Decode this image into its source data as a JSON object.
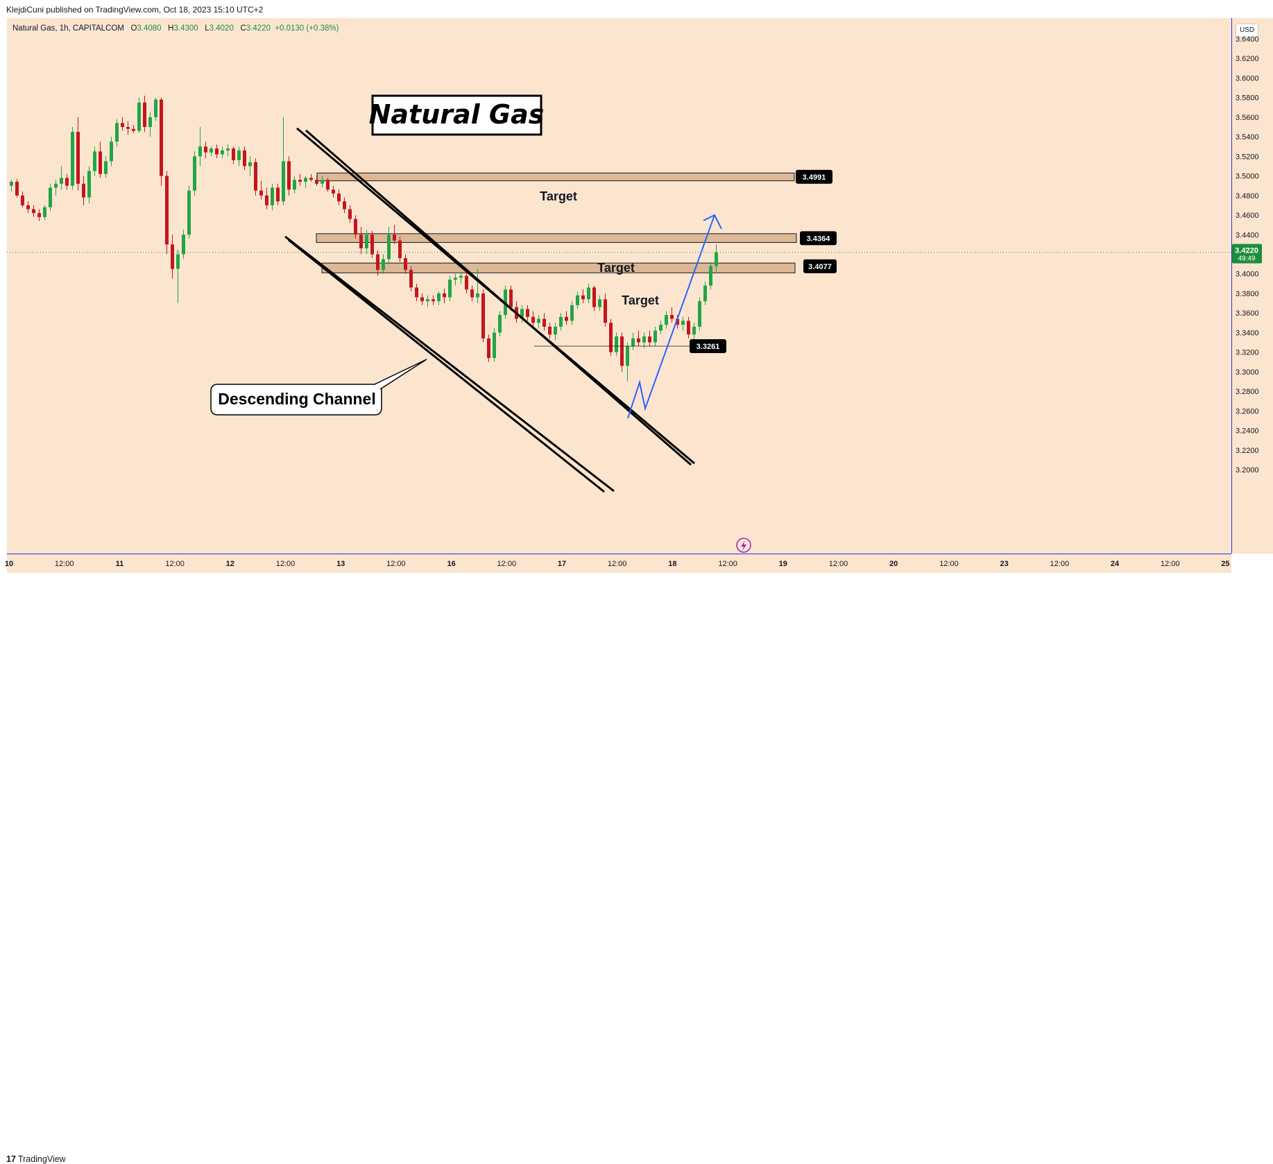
{
  "header": {
    "published": "KlejdiCuni published on TradingView.com, Oct 18, 2023 15:10 UTC+2"
  },
  "symbol": {
    "name": "Natural Gas, 1h, CAPITALCOM",
    "open_label": "O",
    "open": "3.4080",
    "high_label": "H",
    "high": "3.4300",
    "low_label": "L",
    "low": "3.4020",
    "close_label": "C",
    "close": "3.4220",
    "change": "+0.0130 (+0.38%)"
  },
  "currency": "USD",
  "footer": {
    "logo_mark": "17",
    "logo_text": "TradingView"
  },
  "colors": {
    "background": "#fce5cf",
    "up": "#22a447",
    "down": "#c4161c",
    "zone_fill": "#dcb896",
    "projection": "#2962ff",
    "axis_line": "#2a2ee8"
  },
  "chart_data": {
    "type": "candlestick",
    "title": "Natural Gas",
    "ylim": [
      3.19,
      3.65
    ],
    "y_ticks": [
      "3.6400",
      "3.6200",
      "3.6000",
      "3.5800",
      "3.5600",
      "3.5400",
      "3.5200",
      "3.5000",
      "3.4800",
      "3.4600",
      "3.4400",
      "3.4200",
      "3.4000",
      "3.3800",
      "3.3600",
      "3.3400",
      "3.3200",
      "3.3000",
      "3.2800",
      "3.2600",
      "3.2400",
      "3.2200",
      "3.2000"
    ],
    "x_ticks": [
      "10",
      "12:00",
      "11",
      "12:00",
      "12",
      "12:00",
      "13",
      "12:00",
      "16",
      "12:00",
      "17",
      "12:00",
      "18",
      "12:00",
      "19",
      "12:00",
      "20",
      "12:00",
      "23",
      "12:00",
      "24",
      "12:00",
      "25"
    ],
    "price_labels": [
      {
        "value": "3.4991",
        "price": 3.4991
      },
      {
        "value": "3.4364",
        "price": 3.4364
      },
      {
        "value": "3.4077",
        "price": 3.4077
      },
      {
        "value": "3.3261",
        "price": 3.3261
      }
    ],
    "current_price": {
      "value": "3.4220",
      "countdown": "49:49"
    },
    "target_zones": [
      {
        "label": "Target",
        "top": 3.503,
        "bottom": 3.495
      },
      {
        "label": "Target",
        "top": 3.441,
        "bottom": 3.432
      },
      {
        "label": "Target",
        "top": 3.411,
        "bottom": 3.401
      }
    ],
    "annotations": {
      "title_box": "Natural Gas",
      "channel_label": "Descending Channel"
    },
    "candles": [
      {
        "o": 3.49,
        "h": 3.496,
        "l": 3.484,
        "c": 3.494
      },
      {
        "o": 3.494,
        "h": 3.497,
        "l": 3.478,
        "c": 3.48
      },
      {
        "o": 3.48,
        "h": 3.484,
        "l": 3.468,
        "c": 3.47
      },
      {
        "o": 3.47,
        "h": 3.474,
        "l": 3.462,
        "c": 3.466
      },
      {
        "o": 3.466,
        "h": 3.47,
        "l": 3.458,
        "c": 3.462
      },
      {
        "o": 3.462,
        "h": 3.466,
        "l": 3.454,
        "c": 3.458
      },
      {
        "o": 3.458,
        "h": 3.47,
        "l": 3.455,
        "c": 3.468
      },
      {
        "o": 3.468,
        "h": 3.492,
        "l": 3.464,
        "c": 3.488
      },
      {
        "o": 3.488,
        "h": 3.496,
        "l": 3.48,
        "c": 3.492
      },
      {
        "o": 3.492,
        "h": 3.51,
        "l": 3.486,
        "c": 3.498
      },
      {
        "o": 3.498,
        "h": 3.502,
        "l": 3.486,
        "c": 3.49
      },
      {
        "o": 3.49,
        "h": 3.55,
        "l": 3.486,
        "c": 3.545
      },
      {
        "o": 3.545,
        "h": 3.56,
        "l": 3.485,
        "c": 3.492
      },
      {
        "o": 3.492,
        "h": 3.5,
        "l": 3.47,
        "c": 3.478
      },
      {
        "o": 3.478,
        "h": 3.51,
        "l": 3.472,
        "c": 3.505
      },
      {
        "o": 3.505,
        "h": 3.53,
        "l": 3.5,
        "c": 3.525
      },
      {
        "o": 3.525,
        "h": 3.535,
        "l": 3.498,
        "c": 3.502
      },
      {
        "o": 3.502,
        "h": 3.52,
        "l": 3.498,
        "c": 3.515
      },
      {
        "o": 3.515,
        "h": 3.54,
        "l": 3.51,
        "c": 3.535
      },
      {
        "o": 3.535,
        "h": 3.558,
        "l": 3.53,
        "c": 3.554
      },
      {
        "o": 3.554,
        "h": 3.56,
        "l": 3.546,
        "c": 3.55
      },
      {
        "o": 3.55,
        "h": 3.556,
        "l": 3.542,
        "c": 3.548
      },
      {
        "o": 3.548,
        "h": 3.552,
        "l": 3.544,
        "c": 3.546
      },
      {
        "o": 3.546,
        "h": 3.58,
        "l": 3.544,
        "c": 3.575
      },
      {
        "o": 3.575,
        "h": 3.582,
        "l": 3.545,
        "c": 3.55
      },
      {
        "o": 3.55,
        "h": 3.565,
        "l": 3.54,
        "c": 3.56
      },
      {
        "o": 3.56,
        "h": 3.58,
        "l": 3.556,
        "c": 3.578
      },
      {
        "o": 3.578,
        "h": 3.58,
        "l": 3.49,
        "c": 3.5
      },
      {
        "o": 3.5,
        "h": 3.505,
        "l": 3.42,
        "c": 3.43
      },
      {
        "o": 3.43,
        "h": 3.44,
        "l": 3.395,
        "c": 3.405
      },
      {
        "o": 3.405,
        "h": 3.425,
        "l": 3.37,
        "c": 3.42
      },
      {
        "o": 3.42,
        "h": 3.445,
        "l": 3.415,
        "c": 3.44
      },
      {
        "o": 3.44,
        "h": 3.49,
        "l": 3.436,
        "c": 3.485
      },
      {
        "o": 3.485,
        "h": 3.525,
        "l": 3.48,
        "c": 3.52
      },
      {
        "o": 3.52,
        "h": 3.55,
        "l": 3.51,
        "c": 3.53
      },
      {
        "o": 3.53,
        "h": 3.535,
        "l": 3.518,
        "c": 3.524
      },
      {
        "o": 3.524,
        "h": 3.53,
        "l": 3.52,
        "c": 3.528
      },
      {
        "o": 3.528,
        "h": 3.532,
        "l": 3.518,
        "c": 3.522
      },
      {
        "o": 3.522,
        "h": 3.53,
        "l": 3.518,
        "c": 3.526
      },
      {
        "o": 3.526,
        "h": 3.532,
        "l": 3.52,
        "c": 3.528
      },
      {
        "o": 3.528,
        "h": 3.53,
        "l": 3.512,
        "c": 3.516
      },
      {
        "o": 3.516,
        "h": 3.53,
        "l": 3.51,
        "c": 3.526
      },
      {
        "o": 3.526,
        "h": 3.53,
        "l": 3.506,
        "c": 3.51
      },
      {
        "o": 3.51,
        "h": 3.52,
        "l": 3.5,
        "c": 3.514
      },
      {
        "o": 3.514,
        "h": 3.518,
        "l": 3.48,
        "c": 3.485
      },
      {
        "o": 3.485,
        "h": 3.495,
        "l": 3.476,
        "c": 3.48
      },
      {
        "o": 3.48,
        "h": 3.488,
        "l": 3.466,
        "c": 3.47
      },
      {
        "o": 3.47,
        "h": 3.492,
        "l": 3.465,
        "c": 3.488
      },
      {
        "o": 3.488,
        "h": 3.492,
        "l": 3.47,
        "c": 3.474
      },
      {
        "o": 3.474,
        "h": 3.56,
        "l": 3.47,
        "c": 3.515
      },
      {
        "o": 3.515,
        "h": 3.52,
        "l": 3.48,
        "c": 3.486
      },
      {
        "o": 3.486,
        "h": 3.5,
        "l": 3.482,
        "c": 3.496
      },
      {
        "o": 3.496,
        "h": 3.502,
        "l": 3.49,
        "c": 3.494
      },
      {
        "o": 3.494,
        "h": 3.5,
        "l": 3.488,
        "c": 3.498
      },
      {
        "o": 3.498,
        "h": 3.502,
        "l": 3.494,
        "c": 3.496
      },
      {
        "o": 3.496,
        "h": 3.5,
        "l": 3.49,
        "c": 3.492
      },
      {
        "o": 3.492,
        "h": 3.5,
        "l": 3.488,
        "c": 3.496
      },
      {
        "o": 3.496,
        "h": 3.498,
        "l": 3.484,
        "c": 3.486
      },
      {
        "o": 3.486,
        "h": 3.49,
        "l": 3.478,
        "c": 3.482
      },
      {
        "o": 3.482,
        "h": 3.486,
        "l": 3.47,
        "c": 3.474
      },
      {
        "o": 3.474,
        "h": 3.478,
        "l": 3.462,
        "c": 3.466
      },
      {
        "o": 3.466,
        "h": 3.47,
        "l": 3.452,
        "c": 3.456
      },
      {
        "o": 3.456,
        "h": 3.46,
        "l": 3.436,
        "c": 3.44
      },
      {
        "o": 3.44,
        "h": 3.448,
        "l": 3.42,
        "c": 3.426
      },
      {
        "o": 3.426,
        "h": 3.445,
        "l": 3.42,
        "c": 3.44
      },
      {
        "o": 3.44,
        "h": 3.444,
        "l": 3.416,
        "c": 3.42
      },
      {
        "o": 3.42,
        "h": 3.424,
        "l": 3.398,
        "c": 3.404
      },
      {
        "o": 3.404,
        "h": 3.42,
        "l": 3.4,
        "c": 3.415
      },
      {
        "o": 3.415,
        "h": 3.448,
        "l": 3.41,
        "c": 3.44
      },
      {
        "o": 3.44,
        "h": 3.45,
        "l": 3.43,
        "c": 3.434
      },
      {
        "o": 3.434,
        "h": 3.438,
        "l": 3.412,
        "c": 3.416
      },
      {
        "o": 3.416,
        "h": 3.42,
        "l": 3.4,
        "c": 3.404
      },
      {
        "o": 3.404,
        "h": 3.408,
        "l": 3.382,
        "c": 3.386
      },
      {
        "o": 3.386,
        "h": 3.39,
        "l": 3.372,
        "c": 3.376
      },
      {
        "o": 3.376,
        "h": 3.38,
        "l": 3.368,
        "c": 3.372
      },
      {
        "o": 3.372,
        "h": 3.378,
        "l": 3.366,
        "c": 3.374
      },
      {
        "o": 3.374,
        "h": 3.378,
        "l": 3.368,
        "c": 3.372
      },
      {
        "o": 3.372,
        "h": 3.382,
        "l": 3.368,
        "c": 3.38
      },
      {
        "o": 3.38,
        "h": 3.385,
        "l": 3.37,
        "c": 3.376
      },
      {
        "o": 3.376,
        "h": 3.398,
        "l": 3.372,
        "c": 3.394
      },
      {
        "o": 3.394,
        "h": 3.4,
        "l": 3.388,
        "c": 3.396
      },
      {
        "o": 3.396,
        "h": 3.402,
        "l": 3.39,
        "c": 3.398
      },
      {
        "o": 3.398,
        "h": 3.405,
        "l": 3.38,
        "c": 3.384
      },
      {
        "o": 3.384,
        "h": 3.388,
        "l": 3.372,
        "c": 3.376
      },
      {
        "o": 3.376,
        "h": 3.405,
        "l": 3.37,
        "c": 3.38
      },
      {
        "o": 3.38,
        "h": 3.384,
        "l": 3.33,
        "c": 3.334
      },
      {
        "o": 3.334,
        "h": 3.338,
        "l": 3.31,
        "c": 3.314
      },
      {
        "o": 3.314,
        "h": 3.345,
        "l": 3.31,
        "c": 3.34
      },
      {
        "o": 3.34,
        "h": 3.362,
        "l": 3.336,
        "c": 3.358
      },
      {
        "o": 3.358,
        "h": 3.388,
        "l": 3.354,
        "c": 3.384
      },
      {
        "o": 3.384,
        "h": 3.388,
        "l": 3.362,
        "c": 3.366
      },
      {
        "o": 3.366,
        "h": 3.372,
        "l": 3.35,
        "c": 3.354
      },
      {
        "o": 3.354,
        "h": 3.368,
        "l": 3.35,
        "c": 3.364
      },
      {
        "o": 3.364,
        "h": 3.368,
        "l": 3.352,
        "c": 3.356
      },
      {
        "o": 3.356,
        "h": 3.362,
        "l": 3.346,
        "c": 3.35
      },
      {
        "o": 3.35,
        "h": 3.358,
        "l": 3.344,
        "c": 3.354
      },
      {
        "o": 3.354,
        "h": 3.36,
        "l": 3.342,
        "c": 3.346
      },
      {
        "o": 3.346,
        "h": 3.35,
        "l": 3.334,
        "c": 3.338
      },
      {
        "o": 3.338,
        "h": 3.35,
        "l": 3.332,
        "c": 3.346
      },
      {
        "o": 3.346,
        "h": 3.36,
        "l": 3.342,
        "c": 3.356
      },
      {
        "o": 3.356,
        "h": 3.362,
        "l": 3.348,
        "c": 3.352
      },
      {
        "o": 3.352,
        "h": 3.372,
        "l": 3.348,
        "c": 3.368
      },
      {
        "o": 3.368,
        "h": 3.382,
        "l": 3.364,
        "c": 3.378
      },
      {
        "o": 3.378,
        "h": 3.384,
        "l": 3.37,
        "c": 3.374
      },
      {
        "o": 3.374,
        "h": 3.39,
        "l": 3.37,
        "c": 3.386
      },
      {
        "o": 3.386,
        "h": 3.388,
        "l": 3.362,
        "c": 3.366
      },
      {
        "o": 3.366,
        "h": 3.378,
        "l": 3.362,
        "c": 3.374
      },
      {
        "o": 3.374,
        "h": 3.38,
        "l": 3.346,
        "c": 3.35
      },
      {
        "o": 3.35,
        "h": 3.354,
        "l": 3.316,
        "c": 3.32
      },
      {
        "o": 3.32,
        "h": 3.34,
        "l": 3.316,
        "c": 3.336
      },
      {
        "o": 3.336,
        "h": 3.34,
        "l": 3.3,
        "c": 3.306
      },
      {
        "o": 3.306,
        "h": 3.33,
        "l": 3.29,
        "c": 3.326
      },
      {
        "o": 3.326,
        "h": 3.34,
        "l": 3.322,
        "c": 3.334
      },
      {
        "o": 3.334,
        "h": 3.342,
        "l": 3.326,
        "c": 3.33
      },
      {
        "o": 3.33,
        "h": 3.34,
        "l": 3.324,
        "c": 3.336
      },
      {
        "o": 3.336,
        "h": 3.342,
        "l": 3.326,
        "c": 3.33
      },
      {
        "o": 3.33,
        "h": 3.346,
        "l": 3.326,
        "c": 3.342
      },
      {
        "o": 3.342,
        "h": 3.352,
        "l": 3.338,
        "c": 3.348
      },
      {
        "o": 3.348,
        "h": 3.362,
        "l": 3.344,
        "c": 3.358
      },
      {
        "o": 3.358,
        "h": 3.366,
        "l": 3.35,
        "c": 3.354
      },
      {
        "o": 3.354,
        "h": 3.358,
        "l": 3.344,
        "c": 3.348
      },
      {
        "o": 3.348,
        "h": 3.356,
        "l": 3.342,
        "c": 3.352
      },
      {
        "o": 3.352,
        "h": 3.356,
        "l": 3.334,
        "c": 3.338
      },
      {
        "o": 3.338,
        "h": 3.35,
        "l": 3.332,
        "c": 3.346
      },
      {
        "o": 3.346,
        "h": 3.376,
        "l": 3.342,
        "c": 3.372
      },
      {
        "o": 3.372,
        "h": 3.392,
        "l": 3.368,
        "c": 3.388
      },
      {
        "o": 3.388,
        "h": 3.412,
        "l": 3.384,
        "c": 3.408
      },
      {
        "o": 3.408,
        "h": 3.43,
        "l": 3.402,
        "c": 3.422
      }
    ]
  }
}
